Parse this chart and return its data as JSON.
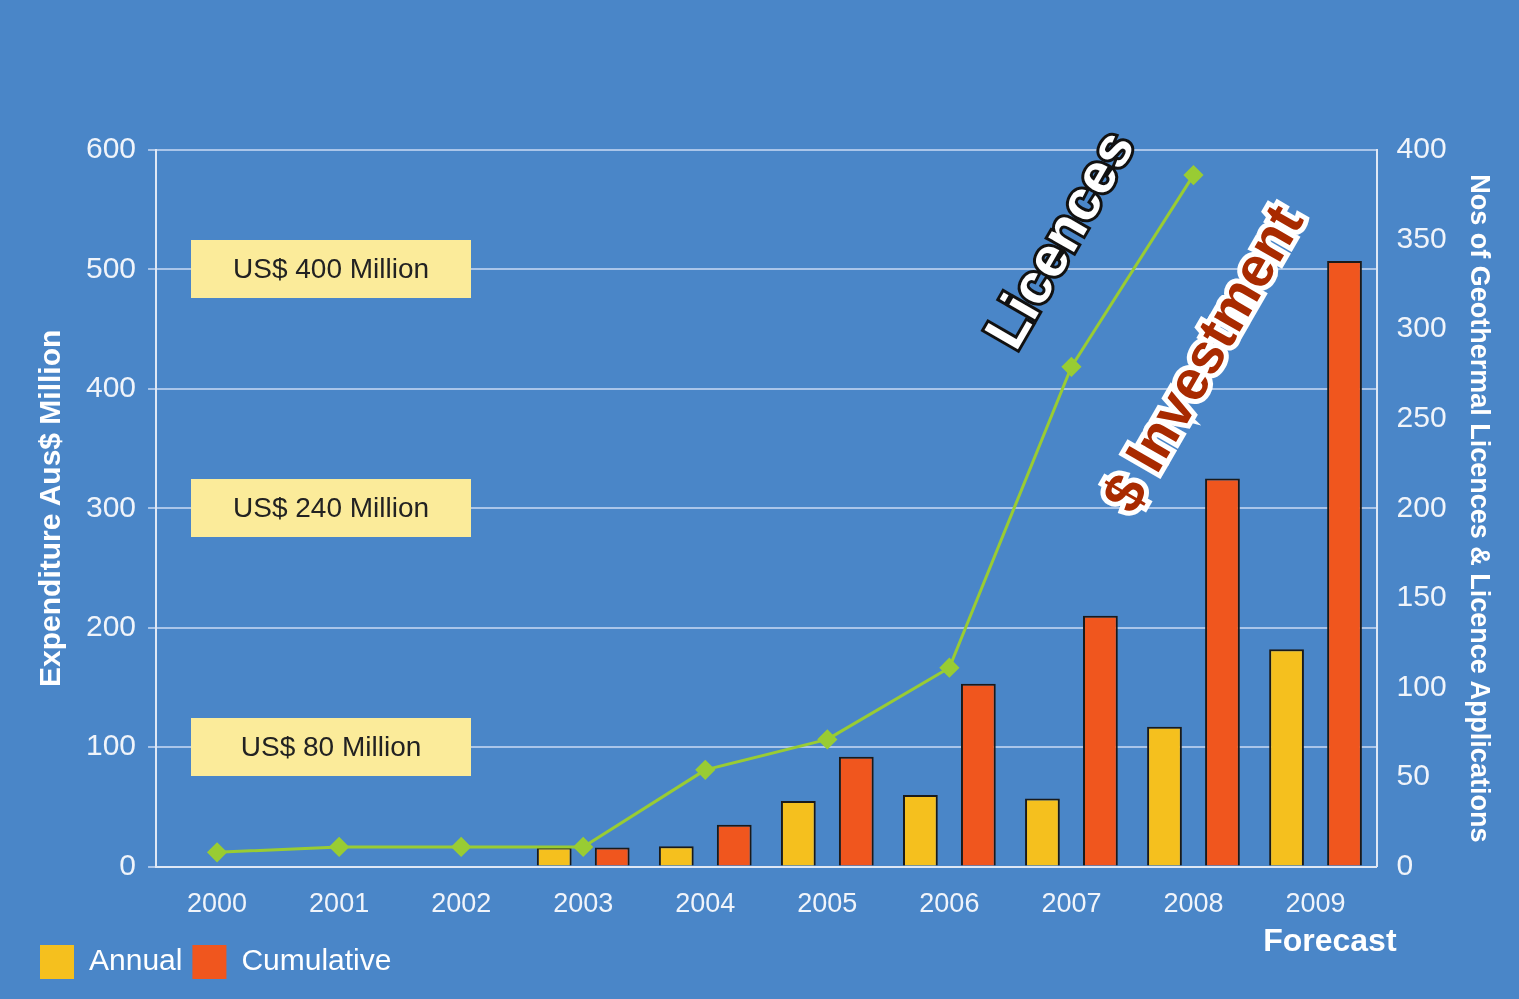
{
  "chart_data": {
    "type": "bar",
    "ylabel": "Expenditure Aus$ Million",
    "y2label": "Nos of Geothermal Licences & Licence Applications",
    "categories": [
      "2000",
      "2001",
      "2002",
      "2003",
      "2004",
      "2005",
      "2006",
      "2007",
      "2008",
      "2009"
    ],
    "series": [
      {
        "name": "Annual",
        "color": "#f5c01e",
        "values": [
          null,
          null,
          null,
          16,
          17,
          55,
          60,
          57,
          117,
          182
        ]
      },
      {
        "name": "Cumulative",
        "color": "#f0561e",
        "values": [
          null,
          null,
          null,
          16,
          35,
          92,
          153,
          210,
          325,
          507
        ]
      },
      {
        "name": "Licences",
        "type": "line",
        "axis": "y2",
        "color": "#99cc33",
        "marker": "diamond",
        "values": [
          8,
          11,
          11,
          11,
          54,
          71,
          111,
          279,
          386,
          null
        ]
      }
    ],
    "ylim": [
      0,
      600
    ],
    "yticks": [
      0,
      100,
      200,
      300,
      400,
      500,
      600
    ],
    "y2lim": [
      0,
      400
    ],
    "y2ticks": [
      0,
      50,
      100,
      150,
      200,
      250,
      300,
      350,
      400
    ],
    "grid": "y",
    "legend": "bottom left",
    "annotations": [
      "US$ 400 Million",
      "US$ 240 Million",
      "US$ 80 Million",
      "$ Investment",
      "Forecast"
    ]
  }
}
